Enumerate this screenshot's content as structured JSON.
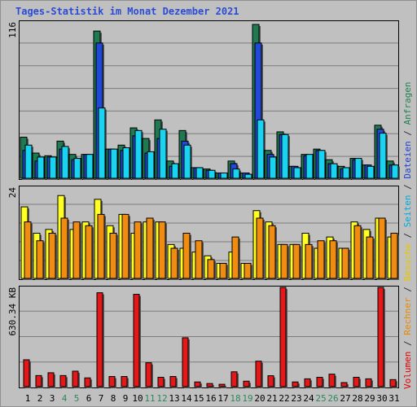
{
  "window": {
    "title": "Tages-Statistik im Monat Dezember 2021"
  },
  "legend": {
    "parts": [
      {
        "text": "Volumen",
        "color": "#e00000"
      },
      {
        "text": " / ",
        "color": "#303030"
      },
      {
        "text": "Rechner",
        "color": "#e88a00"
      },
      {
        "text": " / ",
        "color": "#303030"
      },
      {
        "text": "Besuche",
        "color": "#e8c800"
      },
      {
        "text": " / ",
        "color": "#303030"
      },
      {
        "text": "Seiten",
        "color": "#00a8d8"
      },
      {
        "text": " / ",
        "color": "#303030"
      },
      {
        "text": "Dateien",
        "color": "#2040d0"
      },
      {
        "text": " / ",
        "color": "#303030"
      },
      {
        "text": "Anfragen",
        "color": "#208050"
      }
    ]
  },
  "colors": {
    "anfragen": "#1f7a52",
    "dateien": "#1f49d6",
    "seiten": "#19d4f0",
    "besuche": "#ffff22",
    "rechner": "#f08c12",
    "volumen": "#e41818",
    "weekend_label": "#2a8a5a",
    "weekday_label": "#000000"
  },
  "chart_data": [
    {
      "type": "bar",
      "scale_label": "116",
      "ylim": [
        0,
        116
      ],
      "categories": [
        "1",
        "2",
        "3",
        "4",
        "5",
        "6",
        "7",
        "8",
        "9",
        "10",
        "11",
        "12",
        "13",
        "14",
        "15",
        "16",
        "17",
        "18",
        "19",
        "20",
        "21",
        "22",
        "23",
        "24",
        "25",
        "26",
        "27",
        "28",
        "29",
        "30",
        "31"
      ],
      "weekend_days": [
        "4",
        "5",
        "11",
        "12",
        "18",
        "19",
        "25",
        "26"
      ],
      "series": [
        {
          "name": "Anfragen",
          "values": [
            31,
            19,
            17,
            28,
            18,
            18,
            111,
            22,
            25,
            38,
            30,
            44,
            13,
            36,
            8,
            7,
            4,
            13,
            4,
            116,
            21,
            35,
            9,
            18,
            22,
            14,
            9,
            15,
            10,
            40,
            13
          ]
        },
        {
          "name": "Dateien",
          "values": [
            21,
            13,
            16,
            22,
            14,
            18,
            102,
            22,
            21,
            32,
            19,
            30,
            9,
            28,
            8,
            6,
            4,
            11,
            4,
            102,
            18,
            33,
            9,
            17,
            21,
            11,
            7,
            14,
            10,
            37,
            10
          ]
        },
        {
          "name": "Seiten",
          "values": [
            25,
            16,
            16,
            24,
            15,
            18,
            53,
            22,
            23,
            36,
            20,
            37,
            11,
            25,
            8,
            6,
            4,
            7,
            3,
            44,
            16,
            33,
            8,
            18,
            21,
            11,
            8,
            15,
            9,
            34,
            10
          ]
        }
      ]
    },
    {
      "type": "bar",
      "scale_label": "24",
      "ylim": [
        0,
        24
      ],
      "categories": [
        "1",
        "2",
        "3",
        "4",
        "5",
        "6",
        "7",
        "8",
        "9",
        "10",
        "11",
        "12",
        "13",
        "14",
        "15",
        "16",
        "17",
        "18",
        "19",
        "20",
        "21",
        "22",
        "23",
        "24",
        "25",
        "26",
        "27",
        "28",
        "29",
        "30",
        "31"
      ],
      "series": [
        {
          "name": "Besuche",
          "values": [
            19,
            12,
            13,
            22,
            13,
            15,
            21,
            14,
            17,
            12,
            15,
            15,
            9,
            8,
            7,
            6,
            4,
            7,
            4,
            18,
            15,
            9,
            9,
            12,
            8,
            11,
            8,
            15,
            13,
            16,
            11
          ]
        },
        {
          "name": "Rechner",
          "values": [
            15,
            10,
            12,
            16,
            15,
            14,
            17,
            12,
            17,
            15,
            16,
            15,
            8,
            12,
            10,
            5,
            4,
            11,
            4,
            16,
            14,
            9,
            9,
            9,
            10,
            10,
            8,
            14,
            11,
            16,
            12
          ]
        }
      ]
    },
    {
      "type": "bar",
      "scale_label": "630.34 KB",
      "ylim": [
        0,
        630.34
      ],
      "categories": [
        "1",
        "2",
        "3",
        "4",
        "5",
        "6",
        "7",
        "8",
        "9",
        "10",
        "11",
        "12",
        "13",
        "14",
        "15",
        "16",
        "17",
        "18",
        "19",
        "20",
        "21",
        "22",
        "23",
        "24",
        "25",
        "26",
        "27",
        "28",
        "29",
        "30",
        "31"
      ],
      "series": [
        {
          "name": "Volumen",
          "values": [
            172,
            71,
            89,
            71,
            99,
            56,
            601,
            65,
            65,
            591,
            153,
            60,
            65,
            313,
            30,
            20,
            15,
            95,
            35,
            163,
            70,
            635,
            30,
            50,
            60,
            80,
            26,
            60,
            50,
            635,
            45
          ]
        }
      ]
    }
  ]
}
